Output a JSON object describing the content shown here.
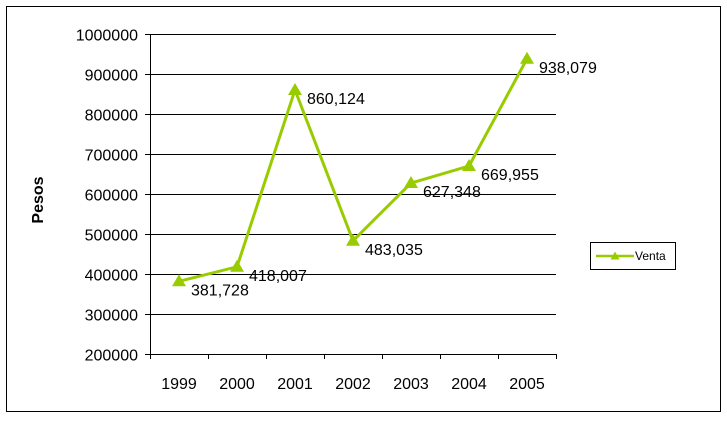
{
  "chart_data": {
    "type": "line",
    "categories": [
      "1999",
      "2000",
      "2001",
      "2002",
      "2003",
      "2004",
      "2005"
    ],
    "series": [
      {
        "name": "Venta",
        "values": [
          381728,
          418007,
          860124,
          483035,
          627348,
          669955,
          938079
        ],
        "data_labels": [
          "381,728",
          "418,007",
          "860,124",
          "483,035",
          "627,348",
          "669,955",
          "938,079"
        ],
        "color": "#99cc00"
      }
    ],
    "ylabel": "Pesos",
    "xlabel": "",
    "ylim": [
      200000,
      1000000
    ],
    "yticks": [
      "200000",
      "300000",
      "400000",
      "500000",
      "600000",
      "700000",
      "800000",
      "900000",
      "1000000"
    ],
    "grid": true,
    "legend": "right"
  }
}
